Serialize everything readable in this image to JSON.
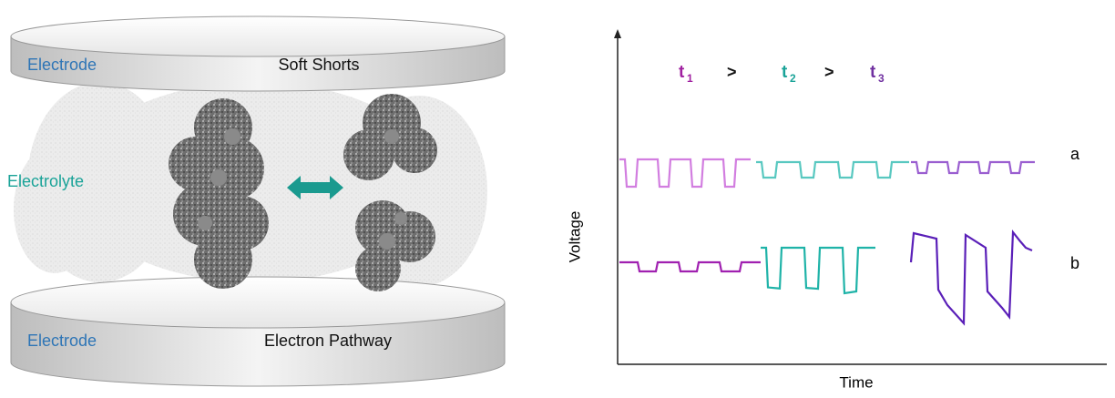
{
  "left_panel": {
    "top_electrode": {
      "label": "Electrode",
      "caption": "Soft Shorts"
    },
    "electrolyte": "Electrolyte",
    "bottom_electrode": {
      "label": "Electrode",
      "caption": "Electron Pathway"
    }
  },
  "right_panel": {
    "time_order": [
      {
        "t": "t",
        "sub": "1"
      },
      ">",
      {
        "t": "t",
        "sub": "2"
      },
      ">",
      {
        "t": "t",
        "sub": "3"
      }
    ],
    "y_axis_label": "Voltage",
    "x_axis_label": "Time",
    "curves": [
      {
        "label": "a"
      },
      {
        "label": "b"
      }
    ]
  }
}
